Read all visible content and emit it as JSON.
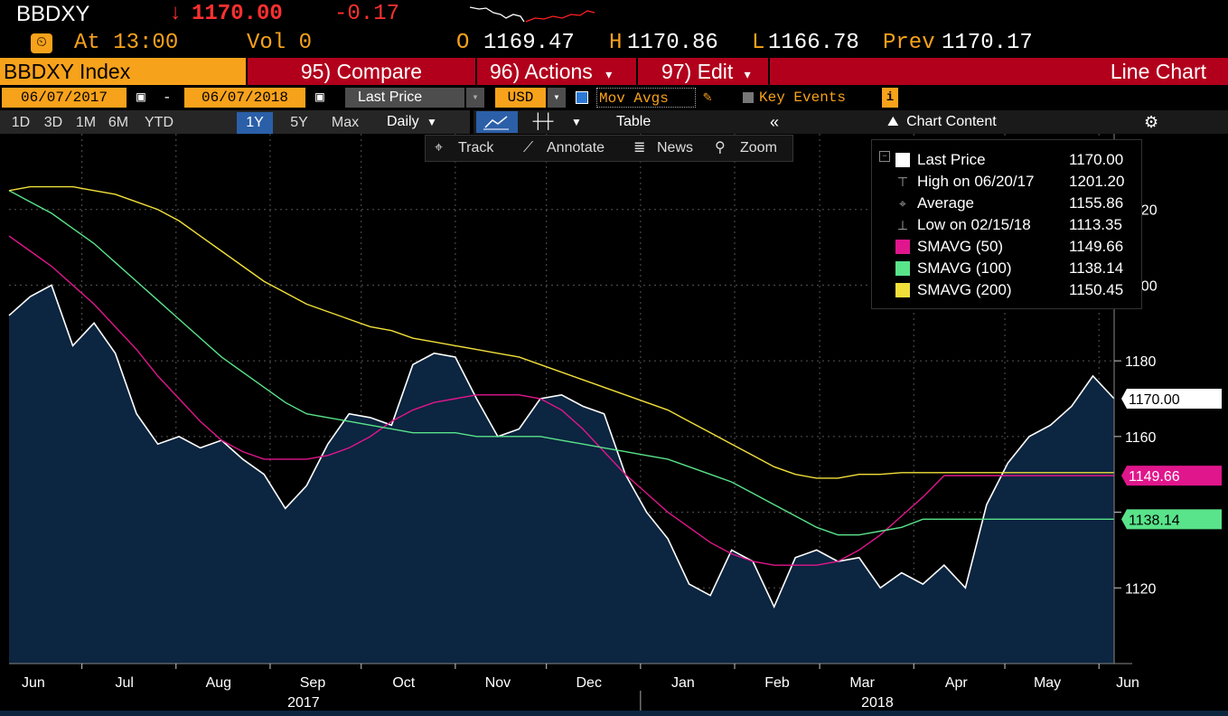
{
  "header": {
    "ticker": "BBDXY",
    "arrow": "↓",
    "last": "1170.00",
    "change": "-0.17",
    "time_label": "At 13:00",
    "vol_label": "Vol 0",
    "open_label": "O",
    "open": "1169.47",
    "high_label": "H",
    "high": "1170.86",
    "low_label": "L",
    "low": "1166.78",
    "prev_label": "Prev",
    "prev": "1170.17"
  },
  "menu": {
    "security": "BBDXY Index",
    "compare": "95) Compare",
    "actions": "96) Actions",
    "edit": "97) Edit",
    "chart_type": "Line Chart"
  },
  "controls": {
    "start_date": "06/07/2017",
    "dash": "-",
    "end_date": "06/07/2018",
    "field": "Last Price",
    "currency": "USD",
    "mov_avgs": "Mov Avgs",
    "key_events": "Key Events"
  },
  "toolbar": {
    "periods": [
      "1D",
      "3D",
      "1M",
      "6M",
      "YTD",
      "1Y",
      "5Y",
      "Max"
    ],
    "active_period": "1Y",
    "frequency": "Daily",
    "table": "Table",
    "chart_content": "Chart Content"
  },
  "tools": {
    "track": "Track",
    "annotate": "Annotate",
    "news": "News",
    "zoom": "Zoom"
  },
  "legend": [
    {
      "label": "Last Price",
      "value": "1170.00",
      "color": "#ffffff"
    },
    {
      "label": "High on 06/20/17",
      "value": "1201.20",
      "color": ""
    },
    {
      "label": "Average",
      "value": "1155.86",
      "color": ""
    },
    {
      "label": "Low on 02/15/18",
      "value": "1113.35",
      "color": ""
    },
    {
      "label": "SMAVG (50)",
      "value": "1149.66",
      "color": "#e0168c"
    },
    {
      "label": "SMAVG (100)",
      "value": "1138.14",
      "color": "#59e38a"
    },
    {
      "label": "SMAVG (200)",
      "value": "1150.45",
      "color": "#f2e03a"
    }
  ],
  "price_tags": [
    {
      "value": "1170.00",
      "bg": "#ffffff",
      "fg": "#000000"
    },
    {
      "value": "1149.66",
      "bg": "#e0168c",
      "fg": "#ffffff"
    },
    {
      "value": "1138.14",
      "bg": "#59e38a",
      "fg": "#000000"
    }
  ],
  "chart_data": {
    "type": "line",
    "ylim": [
      1100,
      1240
    ],
    "y_ticks": [
      1120,
      1140,
      1160,
      1180,
      1200,
      1220
    ],
    "y_tick_labels": [
      "1120",
      "",
      "1160",
      "1180",
      "1200",
      "1220"
    ],
    "x_tick_labels": [
      "Jun",
      "Jul",
      "Aug",
      "Sep",
      "Oct",
      "Nov",
      "Dec",
      "Jan",
      "Feb",
      "Mar",
      "Apr",
      "May",
      "Jun"
    ],
    "year_labels": [
      "2017",
      "2018"
    ],
    "x": [
      "2017-06-07",
      "2017-06-14",
      "2017-06-21",
      "2017-06-28",
      "2017-07-05",
      "2017-07-12",
      "2017-07-19",
      "2017-07-26",
      "2017-08-02",
      "2017-08-09",
      "2017-08-16",
      "2017-08-23",
      "2017-08-30",
      "2017-09-06",
      "2017-09-13",
      "2017-09-20",
      "2017-09-27",
      "2017-10-04",
      "2017-10-11",
      "2017-10-18",
      "2017-10-25",
      "2017-11-01",
      "2017-11-08",
      "2017-11-15",
      "2017-11-22",
      "2017-11-29",
      "2017-12-06",
      "2017-12-13",
      "2017-12-20",
      "2017-12-27",
      "2018-01-03",
      "2018-01-10",
      "2018-01-17",
      "2018-01-24",
      "2018-01-31",
      "2018-02-07",
      "2018-02-14",
      "2018-02-21",
      "2018-02-28",
      "2018-03-07",
      "2018-03-14",
      "2018-03-21",
      "2018-03-28",
      "2018-04-04",
      "2018-04-11",
      "2018-04-18",
      "2018-04-25",
      "2018-05-02",
      "2018-05-09",
      "2018-05-16",
      "2018-05-23",
      "2018-05-30",
      "2018-06-06"
    ],
    "series": [
      {
        "name": "Last Price",
        "color": "#ffffff",
        "fill": "#0c2540",
        "values": [
          1192,
          1197,
          1200,
          1184,
          1190,
          1182,
          1166,
          1158,
          1160,
          1157,
          1159,
          1154,
          1150,
          1141,
          1147,
          1158,
          1166,
          1165,
          1163,
          1179,
          1182,
          1181,
          1170,
          1160,
          1162,
          1170,
          1171,
          1168,
          1166,
          1150,
          1140,
          1133,
          1121,
          1118,
          1130,
          1127,
          1115,
          1128,
          1130,
          1127,
          1128,
          1120,
          1124,
          1121,
          1126,
          1120,
          1142,
          1153,
          1160,
          1163,
          1168,
          1176,
          1170
        ]
      },
      {
        "name": "SMAVG (50)",
        "color": "#e0168c",
        "values": [
          1213,
          1209,
          1205,
          1200,
          1195,
          1189,
          1183,
          1176,
          1170,
          1164,
          1159,
          1156,
          1154,
          1154,
          1154,
          1155,
          1157,
          1160,
          1164,
          1167,
          1169,
          1170,
          1171,
          1171,
          1171,
          1170,
          1167,
          1162,
          1156,
          1150,
          1145,
          1140,
          1136,
          1132,
          1129,
          1127,
          1126,
          1126,
          1126,
          1127,
          1130,
          1134,
          1139,
          1144,
          1149.66,
          1149.66,
          1149.66,
          1149.66,
          1149.66,
          1149.66,
          1149.66,
          1149.66,
          1149.66
        ]
      },
      {
        "name": "SMAVG (100)",
        "color": "#59e38a",
        "values": [
          1225,
          1222,
          1219,
          1215,
          1211,
          1206,
          1201,
          1196,
          1191,
          1186,
          1181,
          1177,
          1173,
          1169,
          1166,
          1165,
          1164,
          1163,
          1162,
          1161,
          1161,
          1161,
          1160,
          1160,
          1160,
          1160,
          1159,
          1158,
          1157,
          1156,
          1155,
          1154,
          1152,
          1150,
          1148,
          1145,
          1142,
          1139,
          1136,
          1134,
          1134,
          1135,
          1136,
          1138.14,
          1138.14,
          1138.14,
          1138.14,
          1138.14,
          1138.14,
          1138.14,
          1138.14,
          1138.14,
          1138.14
        ]
      },
      {
        "name": "SMAVG (200)",
        "color": "#f2e03a",
        "values": [
          1225,
          1226,
          1226,
          1226,
          1225,
          1224,
          1222,
          1220,
          1217,
          1213,
          1209,
          1205,
          1201,
          1198,
          1195,
          1193,
          1191,
          1189,
          1188,
          1186,
          1185,
          1184,
          1183,
          1182,
          1181,
          1179,
          1177,
          1175,
          1173,
          1171,
          1169,
          1167,
          1164,
          1161,
          1158,
          1155,
          1152,
          1150,
          1149,
          1149,
          1150,
          1150,
          1150.45,
          1150.45,
          1150.45,
          1150.45,
          1150.45,
          1150.45,
          1150.45,
          1150.45,
          1150.45,
          1150.45,
          1150.45
        ]
      }
    ]
  }
}
